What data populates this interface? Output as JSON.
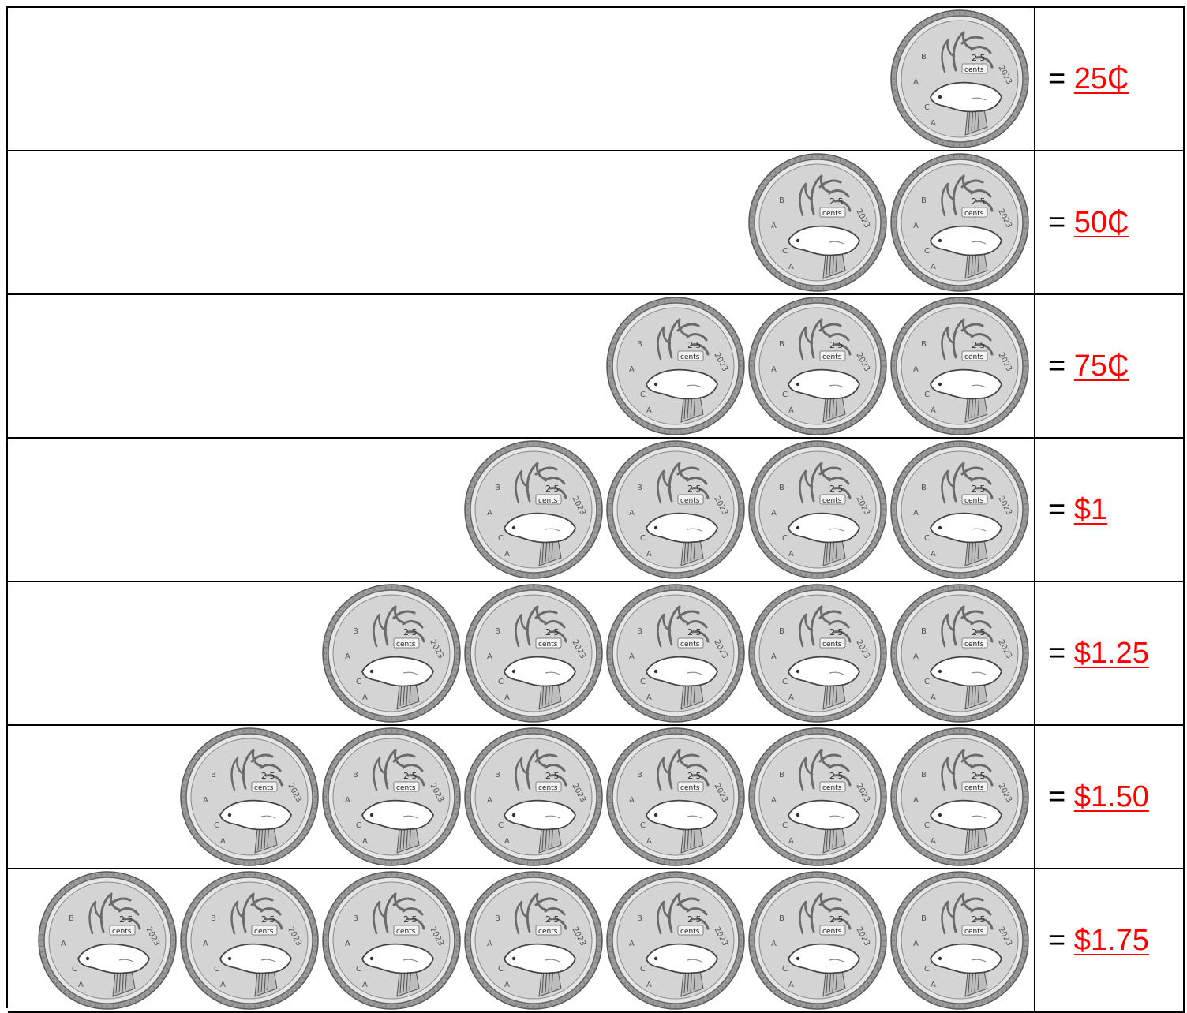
{
  "rows": [
    {
      "coins": 1,
      "equals": "=",
      "amount": "25₵"
    },
    {
      "coins": 2,
      "equals": "=",
      "amount": "50₵"
    },
    {
      "coins": 3,
      "equals": "=",
      "amount": "75₵"
    },
    {
      "coins": 4,
      "equals": "=",
      "amount": "$1"
    },
    {
      "coins": 5,
      "equals": "=",
      "amount": "$1.25"
    },
    {
      "coins": 6,
      "equals": "=",
      "amount": "$1.50"
    },
    {
      "coins": 7,
      "equals": "=",
      "amount": "$1.75"
    }
  ],
  "coin": {
    "icon": "quarter-coin-icon",
    "denomination": "25",
    "unit": "cents",
    "year": "2023"
  },
  "colors": {
    "amount": "#ff0000",
    "coin_face": "#d4d4d4",
    "coin_rim": "#9a9a9a",
    "caribou": "#ffffff",
    "grid": "#000000"
  }
}
